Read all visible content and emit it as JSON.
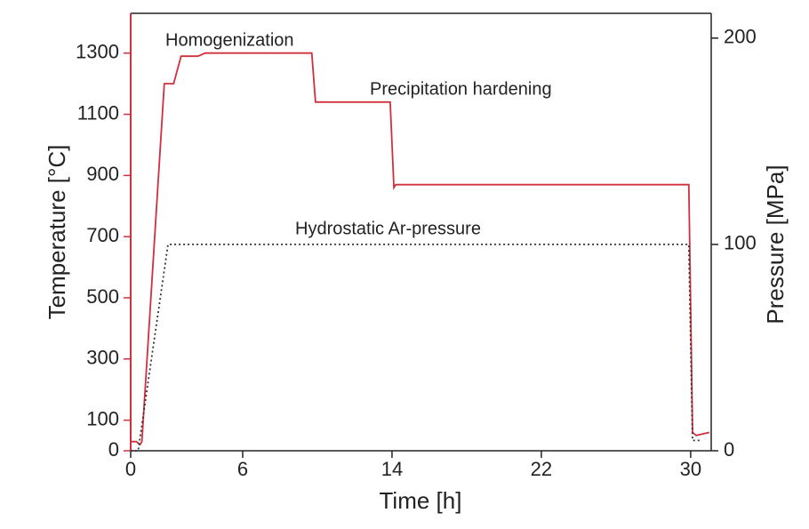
{
  "chart_data": {
    "type": "line",
    "x_label": "Time [h]",
    "y_label": "Temperature [°C]",
    "y2_label": "Pressure [MPa]",
    "annotations": [
      "Homogenization",
      "Precipitation hardening",
      "Hydrostatic Ar-pressure"
    ],
    "xlim": [
      0,
      31.1
    ],
    "xticks": [
      0,
      6,
      14,
      22,
      30
    ],
    "ylim": [
      0,
      1430
    ],
    "yticks": [
      0,
      100,
      300,
      500,
      700,
      900,
      1100,
      1300
    ],
    "y2lim": [
      0,
      212
    ],
    "y2ticks": [
      0,
      100,
      200
    ],
    "series": [
      {
        "color": "#d0303c",
        "dash": "solid",
        "x": [
          0,
          0.3,
          0.5,
          0.6,
          1.8,
          2.3,
          2.7,
          3.6,
          4,
          9.7,
          9.9,
          13.9,
          14.1,
          14.2,
          29.9,
          30.1,
          30.3,
          31
        ],
        "y": [
          30,
          30,
          20,
          30,
          1200,
          1200,
          1290,
          1290,
          1300,
          1300,
          1140,
          1140,
          860,
          870,
          870,
          60,
          50,
          60
        ]
      },
      {
        "color": "#333333",
        "dash": "dotted",
        "axis": "y2",
        "x": [
          0,
          0.4,
          2,
          29.9,
          30.1,
          30.5
        ],
        "y": [
          0,
          0,
          100,
          100,
          5,
          5
        ]
      }
    ]
  }
}
